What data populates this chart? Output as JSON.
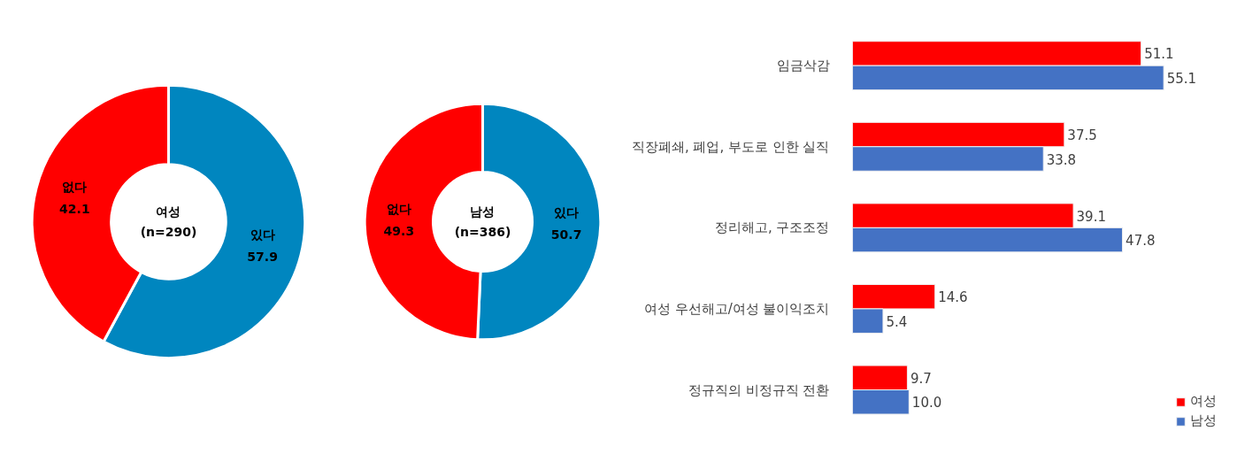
{
  "chart_data": [
    {
      "type": "donut",
      "title": "여성",
      "subtitle": "(n=290)",
      "categories": [
        "있다",
        "없다"
      ],
      "values": [
        57.9,
        42.1
      ],
      "colors": [
        "#0086bf",
        "#ff0000"
      ],
      "data_labels": true
    },
    {
      "type": "donut",
      "title": "남성",
      "subtitle": "(n=386)",
      "categories": [
        "있다",
        "없다"
      ],
      "values": [
        50.7,
        49.3
      ],
      "colors": [
        "#0086bf",
        "#ff0000"
      ],
      "data_labels": true
    },
    {
      "type": "bar",
      "orientation": "horizontal",
      "categories": [
        "임금삭감",
        "직장폐쇄, 폐업, 부도로 인한 실직",
        "정리해고, 구조조정",
        "여성 우선해고/여성 불이익조치",
        "정규직의 비정규직 전환"
      ],
      "series": [
        {
          "name": "여성",
          "color": "#ff0000",
          "values": [
            51.1,
            37.5,
            39.1,
            14.6,
            9.7
          ]
        },
        {
          "name": "남성",
          "color": "#4472c4",
          "values": [
            55.1,
            33.8,
            47.8,
            5.4,
            10.0
          ],
          "value_labels": [
            "55.1",
            "33.8",
            "47.8",
            "5.4",
            "10.0"
          ]
        }
      ],
      "data_labels": true,
      "legend": "bottom right"
    }
  ]
}
